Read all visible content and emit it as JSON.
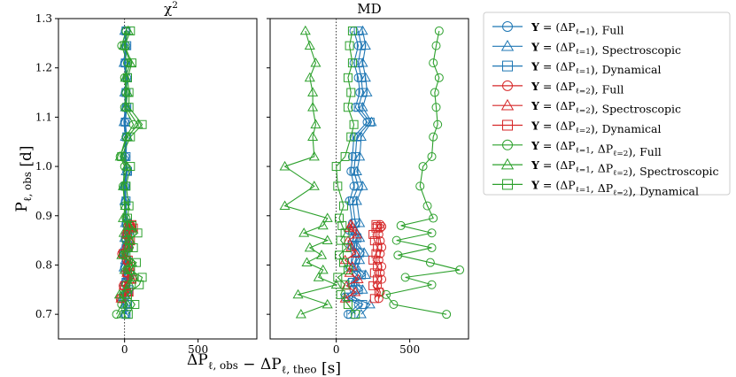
{
  "chart_data": [
    {
      "type": "line",
      "title": "χ²",
      "xlabel": "ΔP_{ℓ, obs} − ΔP_{ℓ, theo} [s]",
      "ylabel": "P_{ℓ, obs} [d]",
      "xlim": [
        -450,
        900
      ],
      "ylim": [
        0.65,
        1.3
      ],
      "xticks": [
        0,
        500
      ],
      "yticks": [
        0.7,
        0.8,
        0.9,
        1.0,
        1.1,
        1.2,
        1.3
      ],
      "zero_line": "dotted",
      "grid": false,
      "series": [
        {
          "key": "l1_full",
          "color": "#1f77b4",
          "marker": "circle",
          "x": [
            5,
            10,
            -5,
            15,
            5,
            25,
            0,
            10,
            -5,
            10,
            5,
            20,
            10,
            5,
            0,
            15,
            5,
            10,
            0,
            10,
            5,
            15,
            0,
            10,
            5
          ],
          "y": [
            0.7,
            0.72,
            0.735,
            0.75,
            0.765,
            0.78,
            0.795,
            0.81,
            0.825,
            0.84,
            0.855,
            0.87,
            0.885,
            0.93,
            0.96,
            0.99,
            1.02,
            1.06,
            1.09,
            1.12,
            1.15,
            1.18,
            1.21,
            1.245,
            1.275
          ]
        },
        {
          "key": "l1_spec",
          "color": "#1f77b4",
          "marker": "triangle",
          "x": [
            0,
            5,
            -10,
            10,
            0,
            20,
            -5,
            5,
            -10,
            5,
            0,
            15,
            5,
            0,
            -5,
            10,
            0,
            5,
            -5,
            5,
            0,
            10,
            -5,
            5,
            0
          ],
          "y": [
            0.7,
            0.72,
            0.735,
            0.75,
            0.765,
            0.78,
            0.795,
            0.81,
            0.825,
            0.84,
            0.855,
            0.87,
            0.885,
            0.93,
            0.96,
            0.99,
            1.02,
            1.06,
            1.09,
            1.12,
            1.15,
            1.18,
            1.21,
            1.245,
            1.275
          ]
        },
        {
          "key": "l1_dyn",
          "color": "#1f77b4",
          "marker": "square",
          "x": [
            10,
            20,
            0,
            25,
            10,
            35,
            5,
            15,
            0,
            20,
            10,
            30,
            15,
            10,
            5,
            20,
            10,
            15,
            5,
            15,
            10,
            20,
            5,
            15,
            10
          ],
          "y": [
            0.7,
            0.72,
            0.735,
            0.75,
            0.765,
            0.78,
            0.795,
            0.81,
            0.825,
            0.84,
            0.855,
            0.87,
            0.885,
            0.93,
            0.96,
            0.99,
            1.02,
            1.06,
            1.09,
            1.12,
            1.15,
            1.18,
            1.21,
            1.245,
            1.275
          ]
        },
        {
          "key": "l2_full",
          "color": "#d62728",
          "marker": "circle",
          "x": [
            -30,
            20,
            -10,
            40,
            10,
            30,
            15,
            -20,
            15,
            30,
            10,
            50,
            20,
            40
          ],
          "y": [
            0.732,
            0.745,
            0.758,
            0.771,
            0.784,
            0.797,
            0.81,
            0.823,
            0.836,
            0.849,
            0.862,
            0.875,
            0.878,
            0.882
          ]
        },
        {
          "key": "l2_spec",
          "color": "#d62728",
          "marker": "triangle",
          "x": [
            -25,
            25,
            -5,
            45,
            15,
            35,
            20,
            -15,
            20,
            35,
            15,
            55,
            25,
            45
          ],
          "y": [
            0.732,
            0.745,
            0.758,
            0.771,
            0.784,
            0.797,
            0.81,
            0.823,
            0.836,
            0.849,
            0.862,
            0.875,
            0.878,
            0.882
          ]
        },
        {
          "key": "l2_dyn",
          "color": "#d62728",
          "marker": "square",
          "x": [
            -20,
            30,
            0,
            50,
            20,
            40,
            25,
            -10,
            25,
            40,
            20,
            60,
            30,
            50
          ],
          "y": [
            0.732,
            0.745,
            0.758,
            0.771,
            0.784,
            0.797,
            0.81,
            0.823,
            0.836,
            0.849,
            0.862,
            0.875,
            0.878,
            0.882
          ]
        },
        {
          "key": "both_full",
          "color": "#2ca02c",
          "marker": "circle",
          "x": [
            -55,
            -20,
            -10,
            10,
            60,
            20,
            40,
            -5,
            30,
            10,
            50,
            20,
            10,
            0,
            -10,
            0,
            -30,
            10,
            60,
            0,
            10,
            0,
            20,
            -20,
            10
          ],
          "y": [
            0.7,
            0.72,
            0.74,
            0.76,
            0.775,
            0.79,
            0.805,
            0.82,
            0.835,
            0.85,
            0.865,
            0.88,
            0.895,
            0.92,
            0.96,
            1.0,
            1.02,
            1.06,
            1.085,
            1.12,
            1.15,
            1.18,
            1.21,
            1.245,
            1.275
          ]
        },
        {
          "key": "both_spec",
          "color": "#2ca02c",
          "marker": "triangle",
          "x": [
            -20,
            20,
            -35,
            35,
            60,
            0,
            50,
            -20,
            20,
            40,
            -5,
            25,
            -10,
            5,
            -10,
            15,
            -30,
            20,
            90,
            10,
            20,
            5,
            40,
            -5,
            25
          ],
          "y": [
            0.7,
            0.72,
            0.74,
            0.76,
            0.775,
            0.79,
            0.805,
            0.82,
            0.835,
            0.85,
            0.865,
            0.88,
            0.895,
            0.92,
            0.96,
            1.0,
            1.02,
            1.06,
            1.085,
            1.12,
            1.15,
            1.18,
            1.21,
            1.245,
            1.275
          ]
        },
        {
          "key": "both_dyn",
          "color": "#2ca02c",
          "marker": "square",
          "x": [
            25,
            70,
            20,
            100,
            120,
            40,
            80,
            10,
            60,
            30,
            90,
            50,
            20,
            30,
            10,
            40,
            -20,
            40,
            120,
            30,
            30,
            20,
            50,
            0,
            40
          ],
          "y": [
            0.7,
            0.72,
            0.74,
            0.76,
            0.775,
            0.79,
            0.805,
            0.82,
            0.835,
            0.85,
            0.865,
            0.88,
            0.895,
            0.92,
            0.96,
            1.0,
            1.02,
            1.06,
            1.085,
            1.12,
            1.15,
            1.18,
            1.21,
            1.245,
            1.275
          ]
        }
      ]
    },
    {
      "type": "line",
      "title": "MD",
      "xlabel": "",
      "ylabel": "",
      "xlim": [
        -450,
        900
      ],
      "ylim": [
        0.65,
        1.3
      ],
      "xticks": [
        0,
        500
      ],
      "zero_line": "dotted",
      "grid": false,
      "series": [
        {
          "key": "l1_full",
          "color": "#1f77b4",
          "marker": "circle",
          "x": [
            80,
            150,
            60,
            120,
            100,
            140,
            90,
            110,
            130,
            100,
            120,
            90,
            110,
            90,
            120,
            100,
            110,
            120,
            210,
            130,
            160,
            150,
            120,
            150,
            120
          ],
          "y": [
            0.7,
            0.72,
            0.735,
            0.75,
            0.765,
            0.78,
            0.795,
            0.81,
            0.825,
            0.84,
            0.855,
            0.87,
            0.885,
            0.93,
            0.96,
            0.99,
            1.02,
            1.06,
            1.09,
            1.12,
            1.15,
            1.18,
            1.21,
            1.245,
            1.275
          ]
        },
        {
          "key": "l1_spec",
          "color": "#1f77b4",
          "marker": "triangle",
          "x": [
            170,
            230,
            110,
            180,
            130,
            200,
            140,
            160,
            190,
            140,
            160,
            130,
            160,
            140,
            180,
            140,
            160,
            170,
            240,
            180,
            210,
            200,
            180,
            200,
            180
          ],
          "y": [
            0.7,
            0.72,
            0.735,
            0.75,
            0.765,
            0.78,
            0.795,
            0.81,
            0.825,
            0.84,
            0.855,
            0.87,
            0.885,
            0.93,
            0.96,
            0.99,
            1.02,
            1.06,
            1.09,
            1.12,
            1.15,
            1.18,
            1.21,
            1.245,
            1.275
          ]
        },
        {
          "key": "l1_dyn",
          "color": "#1f77b4",
          "marker": "square",
          "x": [
            100,
            180,
            80,
            150,
            110,
            170,
            120,
            130,
            160,
            110,
            140,
            110,
            130,
            110,
            150,
            120,
            130,
            140,
            230,
            150,
            180,
            170,
            150,
            170,
            150
          ],
          "y": [
            0.7,
            0.72,
            0.735,
            0.75,
            0.765,
            0.78,
            0.795,
            0.81,
            0.825,
            0.84,
            0.855,
            0.87,
            0.885,
            0.93,
            0.96,
            0.99,
            1.02,
            1.06,
            1.09,
            1.12,
            1.15,
            1.18,
            1.21,
            1.245,
            1.275
          ]
        },
        {
          "key": "l2_full",
          "color": "#d62728",
          "marker": "circle",
          "x": [
            290,
            300,
            280,
            310,
            300,
            310,
            290,
            300,
            310,
            300,
            290,
            300,
            310,
            300
          ],
          "y": [
            0.732,
            0.745,
            0.758,
            0.771,
            0.784,
            0.797,
            0.81,
            0.823,
            0.836,
            0.849,
            0.862,
            0.875,
            0.878,
            0.882
          ]
        },
        {
          "key": "l2_spec",
          "color": "#d62728",
          "marker": "triangle",
          "x": [
            60,
            130,
            70,
            150,
            90,
            110,
            60,
            130,
            100,
            80,
            140,
            90,
            110,
            100
          ],
          "y": [
            0.732,
            0.745,
            0.758,
            0.771,
            0.784,
            0.797,
            0.81,
            0.823,
            0.836,
            0.849,
            0.862,
            0.875,
            0.878,
            0.882
          ]
        },
        {
          "key": "l2_dyn",
          "color": "#d62728",
          "marker": "square",
          "x": [
            260,
            290,
            250,
            280,
            260,
            280,
            250,
            270,
            280,
            260,
            250,
            270,
            280,
            270
          ],
          "y": [
            0.732,
            0.745,
            0.758,
            0.771,
            0.784,
            0.797,
            0.81,
            0.823,
            0.836,
            0.849,
            0.862,
            0.875,
            0.878,
            0.882
          ]
        },
        {
          "key": "both_full",
          "color": "#2ca02c",
          "marker": "circle",
          "x": [
            750,
            390,
            340,
            650,
            470,
            840,
            640,
            420,
            650,
            410,
            650,
            440,
            660,
            620,
            570,
            590,
            650,
            660,
            690,
            680,
            670,
            700,
            660,
            680,
            700
          ],
          "y": [
            0.7,
            0.72,
            0.74,
            0.76,
            0.775,
            0.79,
            0.805,
            0.82,
            0.835,
            0.85,
            0.865,
            0.88,
            0.895,
            0.92,
            0.96,
            1.0,
            1.02,
            1.06,
            1.085,
            1.12,
            1.15,
            1.18,
            1.21,
            1.245,
            1.275
          ]
        },
        {
          "key": "both_spec",
          "color": "#2ca02c",
          "marker": "triangle",
          "x": [
            -240,
            -60,
            -260,
            0,
            -120,
            -90,
            -200,
            -100,
            -180,
            -60,
            -220,
            -90,
            -60,
            -350,
            -150,
            -350,
            -150,
            -160,
            -140,
            -160,
            -160,
            -180,
            -140,
            -180,
            -210
          ],
          "y": [
            0.7,
            0.72,
            0.74,
            0.76,
            0.775,
            0.79,
            0.805,
            0.82,
            0.835,
            0.85,
            0.865,
            0.88,
            0.895,
            0.92,
            0.96,
            1.0,
            1.02,
            1.06,
            1.085,
            1.12,
            1.15,
            1.18,
            1.21,
            1.245,
            1.275
          ]
        },
        {
          "key": "both_dyn",
          "color": "#2ca02c",
          "marker": "square",
          "x": [
            130,
            80,
            30,
            60,
            10,
            80,
            50,
            20,
            70,
            30,
            60,
            40,
            20,
            50,
            10,
            0,
            60,
            100,
            120,
            80,
            100,
            80,
            110,
            90,
            110
          ],
          "y": [
            0.7,
            0.72,
            0.74,
            0.76,
            0.775,
            0.79,
            0.805,
            0.82,
            0.835,
            0.85,
            0.865,
            0.88,
            0.895,
            0.92,
            0.96,
            1.0,
            1.02,
            1.06,
            1.085,
            1.12,
            1.15,
            1.18,
            1.21,
            1.245,
            1.275
          ]
        }
      ]
    }
  ],
  "legend": {
    "placement": "right",
    "entries": [
      {
        "key": "l1_full",
        "color": "#1f77b4",
        "marker": "circle",
        "label": "Y = (ΔP_{ℓ=1}),  Full"
      },
      {
        "key": "l1_spec",
        "color": "#1f77b4",
        "marker": "triangle",
        "label": "Y = (ΔP_{ℓ=1}),  Spectroscopic"
      },
      {
        "key": "l1_dyn",
        "color": "#1f77b4",
        "marker": "square",
        "label": "Y = (ΔP_{ℓ=1}),  Dynamical"
      },
      {
        "key": "l2_full",
        "color": "#d62728",
        "marker": "circle",
        "label": "Y = (ΔP_{ℓ=2}),  Full"
      },
      {
        "key": "l2_spec",
        "color": "#d62728",
        "marker": "triangle",
        "label": "Y = (ΔP_{ℓ=2}),  Spectroscopic"
      },
      {
        "key": "l2_dyn",
        "color": "#d62728",
        "marker": "square",
        "label": "Y = (ΔP_{ℓ=2}),  Dynamical"
      },
      {
        "key": "both_full",
        "color": "#2ca02c",
        "marker": "circle",
        "label": "Y = (ΔP_{ℓ=1}, ΔP_{ℓ=2}),  Full"
      },
      {
        "key": "both_spec",
        "color": "#2ca02c",
        "marker": "triangle",
        "label": "Y = (ΔP_{ℓ=1}, ΔP_{ℓ=2}),  Spectroscopic"
      },
      {
        "key": "both_dyn",
        "color": "#2ca02c",
        "marker": "square",
        "label": "Y = (ΔP_{ℓ=1}, ΔP_{ℓ=2}),  Dynamical"
      }
    ]
  }
}
